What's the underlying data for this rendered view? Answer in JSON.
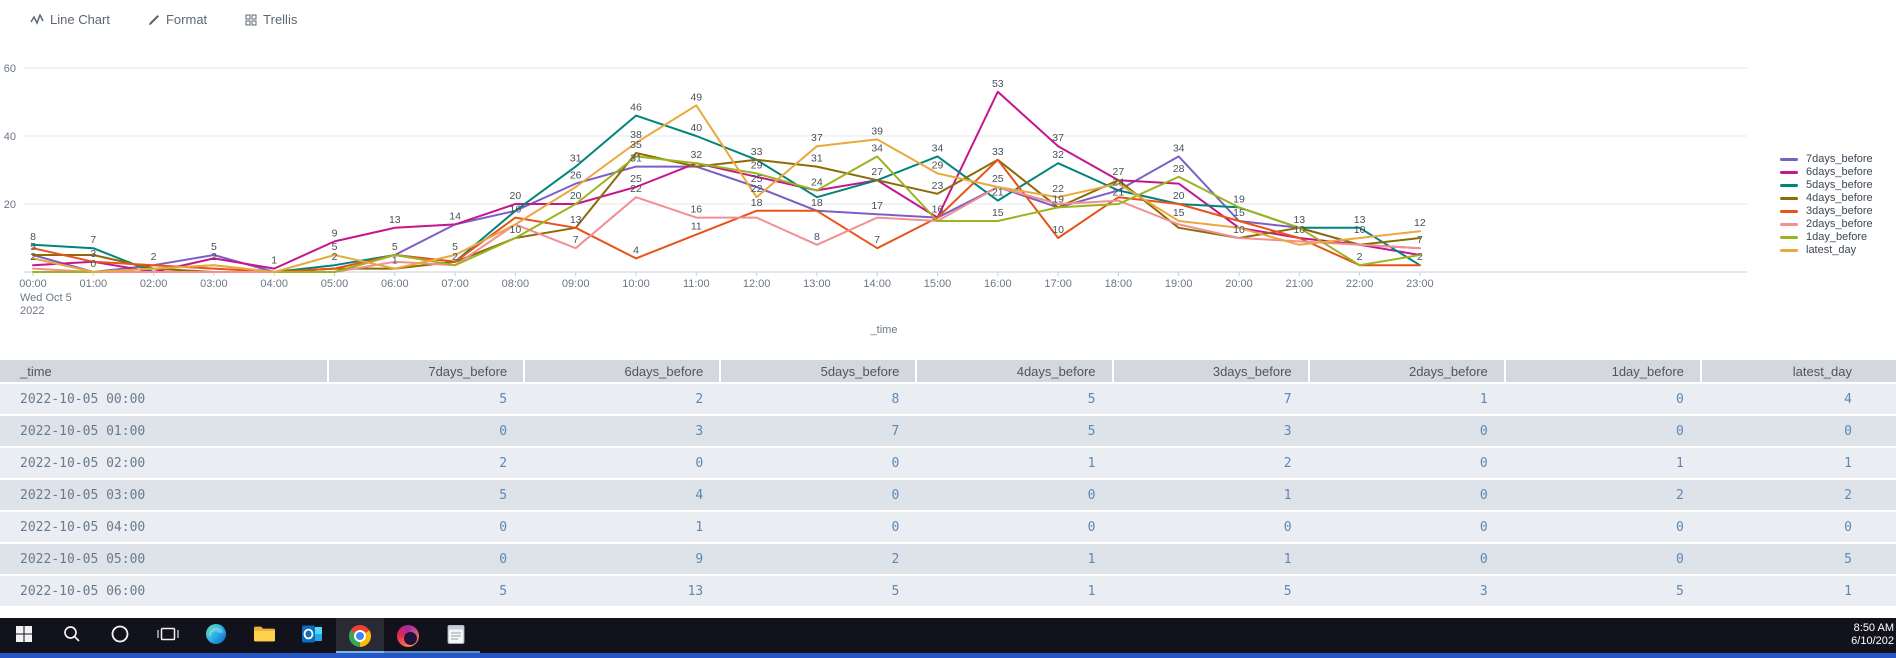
{
  "toolbar": {
    "items": [
      {
        "label": "Line Chart",
        "icon": "line-chart-icon"
      },
      {
        "label": "Format",
        "icon": "pencil-icon"
      },
      {
        "label": "Trellis",
        "icon": "trellis-icon"
      }
    ]
  },
  "chart_data": {
    "type": "line",
    "title": "",
    "xlabel": "_time",
    "ylabel": "",
    "x_first_tick_sub_label": "Wed Oct 5",
    "x_first_tick_sub_year": "2022",
    "ylim": [
      0,
      60
    ],
    "yticks": [
      20,
      40,
      60
    ],
    "grid": true,
    "legend_position": "right",
    "x_categories": [
      "00:00",
      "01:00",
      "02:00",
      "03:00",
      "04:00",
      "05:00",
      "06:00",
      "07:00",
      "08:00",
      "09:00",
      "10:00",
      "11:00",
      "12:00",
      "13:00",
      "14:00",
      "15:00",
      "16:00",
      "17:00",
      "18:00",
      "19:00",
      "20:00",
      "21:00",
      "22:00",
      "23:00"
    ],
    "series": [
      {
        "name": "7days_before",
        "color": "#7b5fc6",
        "values": [
          5,
          0,
          2,
          5,
          0,
          0,
          5,
          14,
          18,
          26,
          31,
          31,
          25,
          18,
          17,
          16,
          25,
          19,
          24,
          34,
          15,
          13,
          8,
          7
        ]
      },
      {
        "name": "6days_before",
        "color": "#c6168d",
        "values": [
          2,
          3,
          0,
          4,
          1,
          9,
          13,
          14,
          20,
          20,
          25,
          32,
          28,
          24,
          27,
          16,
          53,
          37,
          27,
          26,
          13,
          10,
          8,
          5
        ]
      },
      {
        "name": "5days_before",
        "color": "#00857c",
        "values": [
          8,
          7,
          0,
          0,
          0,
          2,
          5,
          3,
          18,
          31,
          46,
          40,
          33,
          22,
          27,
          34,
          21,
          32,
          24,
          20,
          19,
          13,
          13,
          2
        ]
      },
      {
        "name": "4days_before",
        "color": "#8c6c0a",
        "values": [
          5,
          5,
          1,
          0,
          0,
          1,
          1,
          3,
          10,
          13,
          35,
          31,
          33,
          31,
          27,
          23,
          33,
          19,
          27,
          13,
          10,
          13,
          8,
          10
        ]
      },
      {
        "name": "3days_before",
        "color": "#e8531a",
        "values": [
          7,
          3,
          2,
          1,
          0,
          1,
          5,
          3,
          16,
          13,
          4,
          11,
          18,
          18,
          7,
          16,
          33,
          10,
          22,
          20,
          15,
          10,
          2,
          2
        ]
      },
      {
        "name": "2days_before",
        "color": "#f28f93",
        "values": [
          1,
          0,
          0,
          0,
          0,
          0,
          3,
          2,
          14,
          7,
          22,
          16,
          16,
          8,
          16,
          15,
          25,
          20,
          21,
          14,
          10,
          9,
          8,
          7
        ]
      },
      {
        "name": "1day_before",
        "color": "#9db320",
        "values": [
          0,
          0,
          1,
          2,
          0,
          0,
          5,
          2,
          10,
          20,
          34,
          32,
          29,
          24,
          34,
          15,
          15,
          19,
          20,
          28,
          19,
          13,
          2,
          5
        ]
      },
      {
        "name": "latest_day",
        "color": "#e9a93d",
        "values": [
          4,
          0,
          1,
          2,
          0,
          5,
          1,
          5,
          14,
          25,
          38,
          49,
          22,
          37,
          39,
          29,
          25,
          22,
          26,
          15,
          13,
          8,
          10,
          12
        ]
      }
    ]
  },
  "table": {
    "columns": [
      "_time",
      "7days_before",
      "6days_before",
      "5days_before",
      "4days_before",
      "3days_before",
      "2days_before",
      "1day_before",
      "latest_day"
    ],
    "rows": [
      [
        "2022-10-05 00:00",
        5,
        2,
        8,
        5,
        7,
        1,
        0,
        4
      ],
      [
        "2022-10-05 01:00",
        0,
        3,
        7,
        5,
        3,
        0,
        0,
        0
      ],
      [
        "2022-10-05 02:00",
        2,
        0,
        0,
        1,
        2,
        0,
        1,
        1
      ],
      [
        "2022-10-05 03:00",
        5,
        4,
        0,
        0,
        1,
        0,
        2,
        2
      ],
      [
        "2022-10-05 04:00",
        0,
        1,
        0,
        0,
        0,
        0,
        0,
        0
      ],
      [
        "2022-10-05 05:00",
        0,
        9,
        2,
        1,
        1,
        0,
        0,
        5
      ],
      [
        "2022-10-05 06:00",
        5,
        13,
        5,
        1,
        5,
        3,
        5,
        1
      ]
    ]
  },
  "taskbar": {
    "clock": {
      "time": "8:50 AM",
      "date": "6/10/202"
    },
    "icons": [
      "start",
      "search",
      "cortana",
      "task-view",
      "edge",
      "file-explorer",
      "outlook",
      "chrome",
      "firefox",
      "notepad"
    ]
  }
}
